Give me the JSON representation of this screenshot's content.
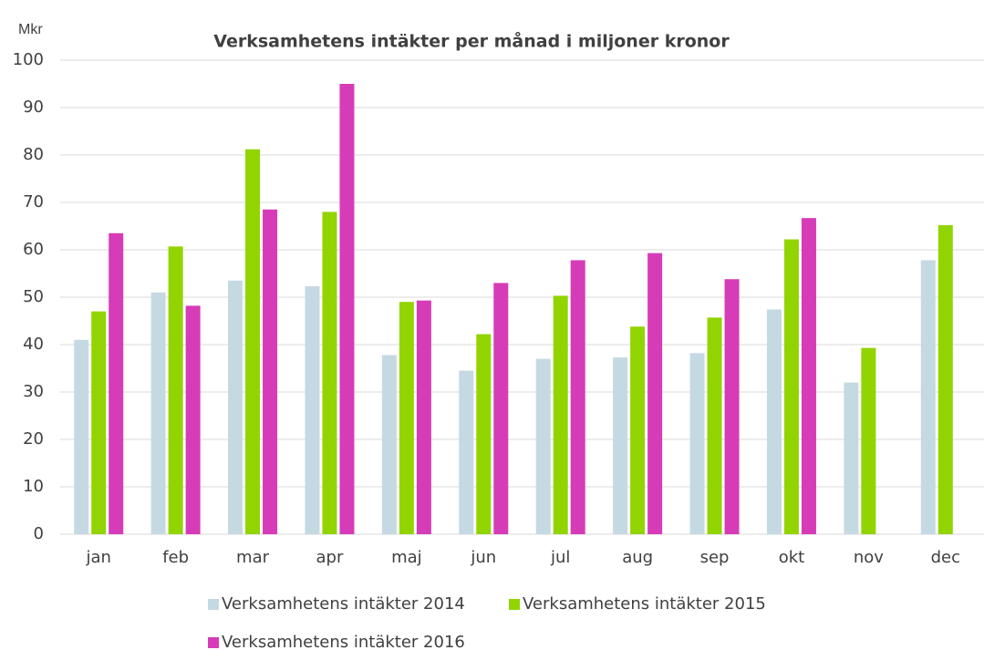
{
  "chart_data": {
    "type": "bar",
    "title": "Verksamhetens intäkter per månad i miljoner kronor",
    "y_axis_label": "Mkr",
    "categories": [
      "jan",
      "feb",
      "mar",
      "apr",
      "maj",
      "jun",
      "jul",
      "aug",
      "sep",
      "okt",
      "nov",
      "dec"
    ],
    "series": [
      {
        "name": "Verksamhetens intäkter 2014",
        "color": "#c5d9e3",
        "values": [
          41,
          51,
          53.5,
          52.3,
          37.8,
          34.5,
          37,
          37.3,
          38.2,
          47.4,
          32,
          57.8
        ]
      },
      {
        "name": "Verksamhetens intäkter 2015",
        "color": "#92d400",
        "values": [
          47,
          60.7,
          81.2,
          68,
          49,
          42.2,
          50.3,
          43.8,
          45.7,
          62.2,
          39.3,
          65.2
        ]
      },
      {
        "name": "Verksamhetens intäkter 2016",
        "color": "#d63cb8",
        "values": [
          63.5,
          48.2,
          68.5,
          95,
          49.3,
          53,
          57.8,
          59.3,
          53.8,
          66.7,
          null,
          null
        ]
      }
    ],
    "ylim": [
      0,
      100
    ],
    "yticks": [
      0,
      10,
      20,
      30,
      40,
      50,
      60,
      70,
      80,
      90,
      100
    ],
    "grid": true
  }
}
